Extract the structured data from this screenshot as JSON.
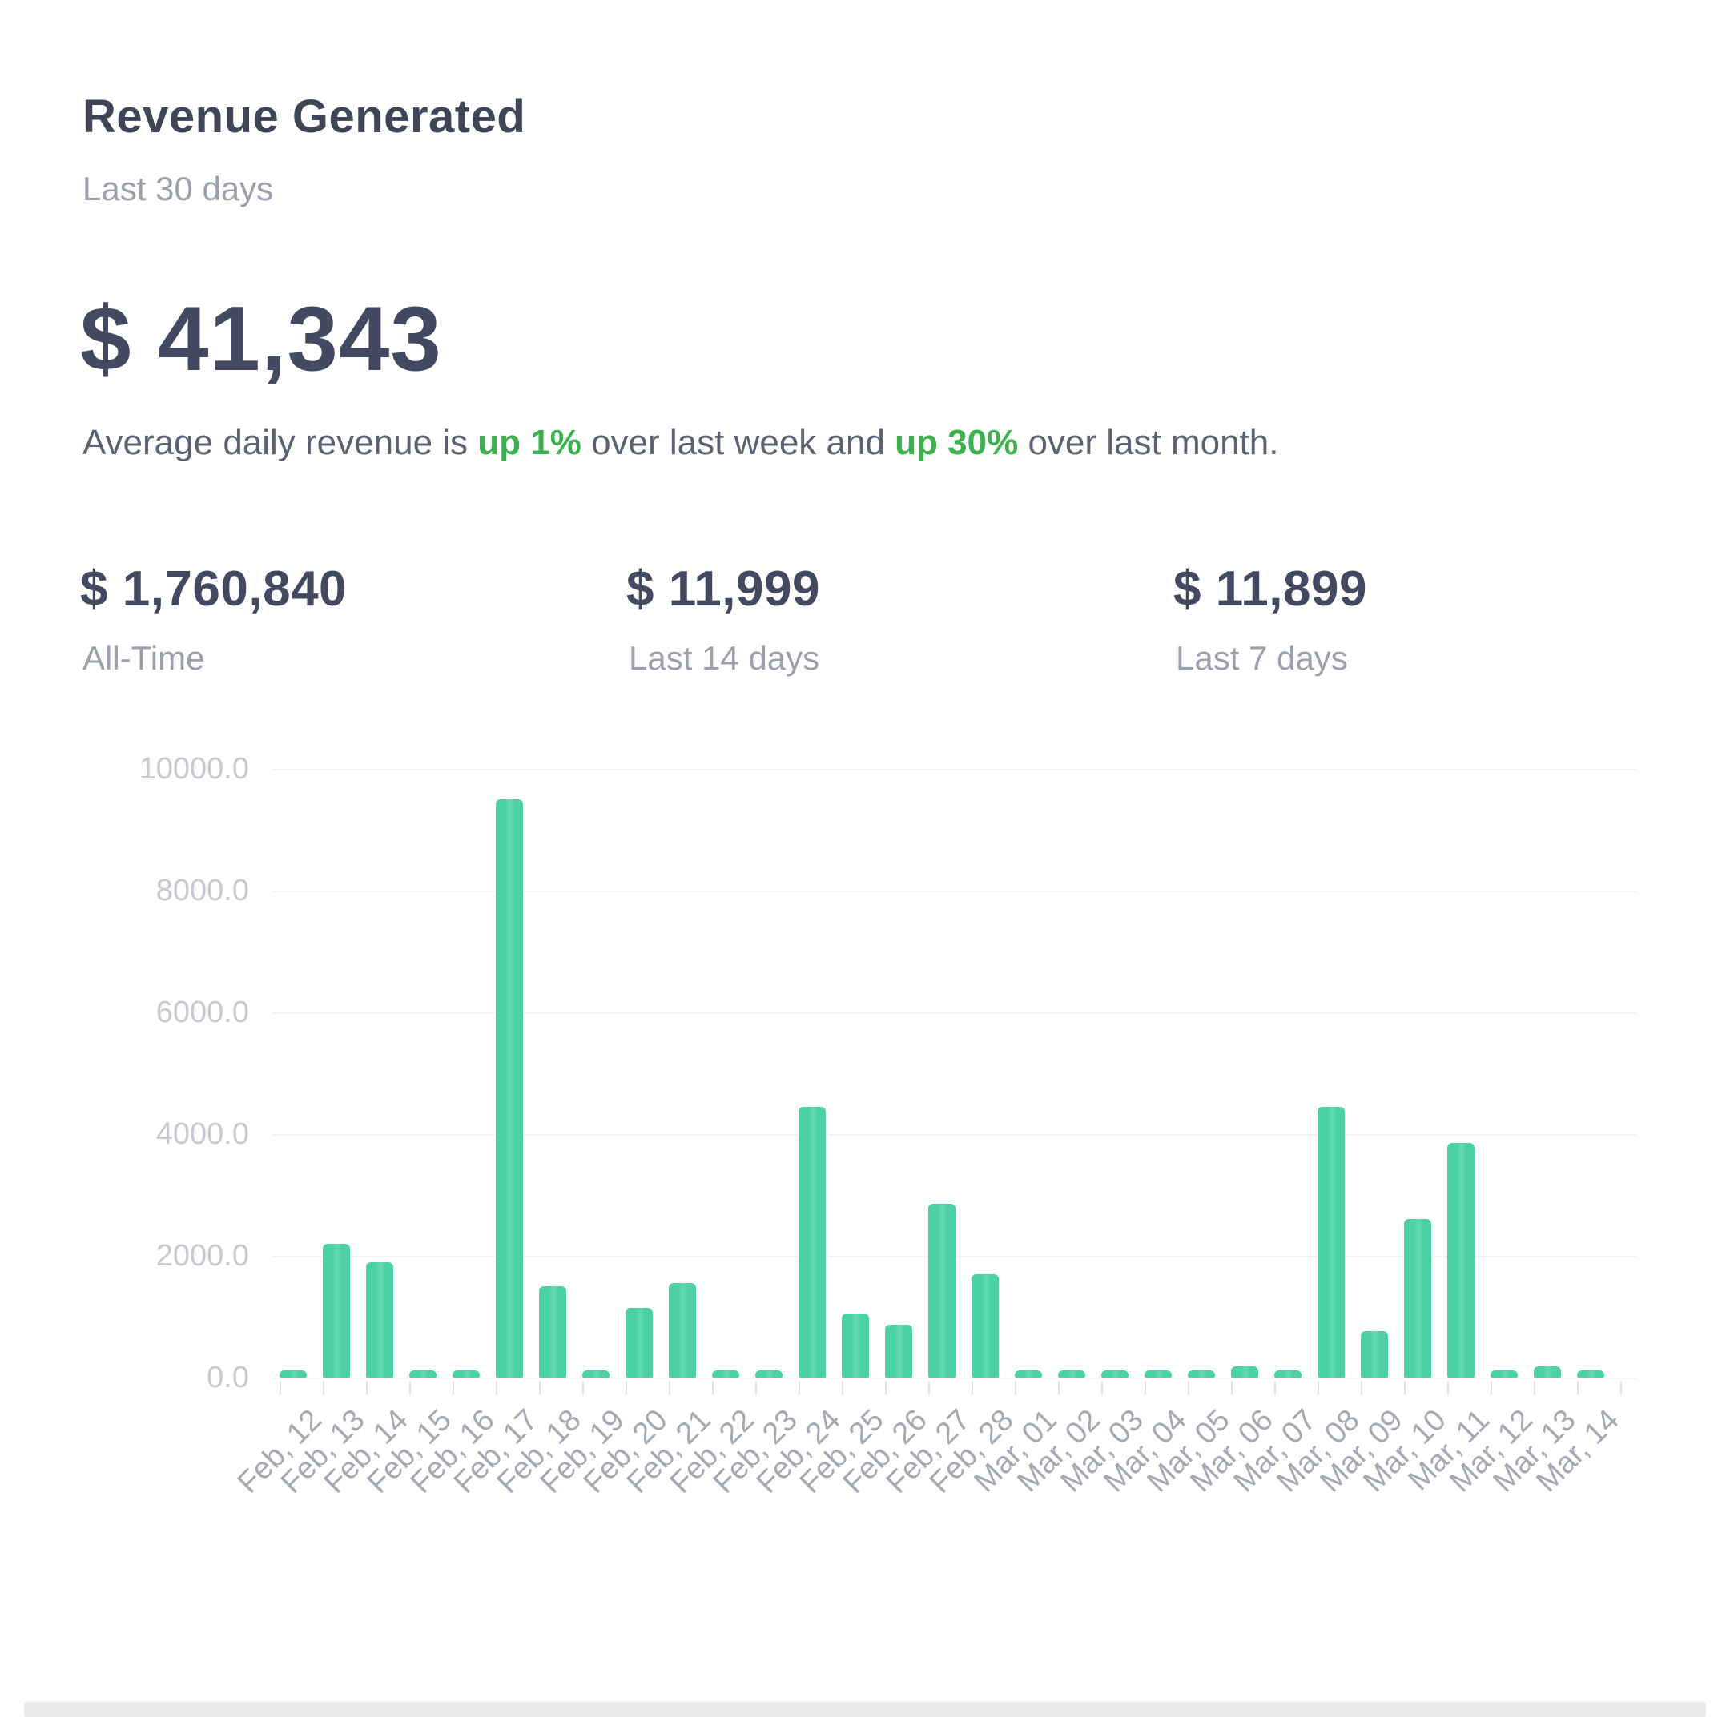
{
  "header": {
    "title": "Revenue Generated",
    "subtitle": "Last 30 days"
  },
  "summary": {
    "total": "$ 41,343",
    "sentence": {
      "prefix": "Average daily revenue is ",
      "week_change": "up 1%",
      "middle": " over last week and ",
      "month_change": "up 30%",
      "suffix": " over last month."
    }
  },
  "stats": [
    {
      "value": "$ 1,760,840",
      "label": "All-Time"
    },
    {
      "value": "$ 11,999",
      "label": "Last 14 days"
    },
    {
      "value": "$ 11,899",
      "label": "Last 7 days"
    }
  ],
  "colors": {
    "accent_green": "#3cb14e",
    "bar": "#4bd1a2",
    "dark_text": "#434960",
    "muted_text": "#9ca0ac",
    "body_text": "#5c6172",
    "grid": "#f6f3f5",
    "axis_tick": "#e3e5e9",
    "y_label": "#c6c9d1",
    "x_label": "#a5a9b4",
    "divider": "#e9e9ec"
  },
  "chart_data": {
    "type": "bar",
    "categories": [
      "Feb, 12",
      "Feb, 13",
      "Feb, 14",
      "Feb, 15",
      "Feb, 16",
      "Feb, 17",
      "Feb, 18",
      "Feb, 19",
      "Feb, 20",
      "Feb, 21",
      "Feb, 22",
      "Feb, 23",
      "Feb, 24",
      "Feb, 25",
      "Feb, 26",
      "Feb, 27",
      "Feb, 28",
      "Mar, 01",
      "Mar, 02",
      "Mar, 03",
      "Mar, 04",
      "Mar, 05",
      "Mar, 06",
      "Mar, 07",
      "Mar, 08",
      "Mar, 09",
      "Mar, 10",
      "Mar, 11",
      "Mar, 12",
      "Mar, 13",
      "Mar, 14"
    ],
    "values": [
      100,
      2200,
      1900,
      100,
      100,
      9500,
      1500,
      100,
      1150,
      1550,
      100,
      100,
      4450,
      1050,
      870,
      2850,
      1700,
      100,
      100,
      100,
      100,
      100,
      180,
      100,
      4450,
      760,
      2600,
      3850,
      100,
      180,
      100
    ],
    "title": "",
    "xlabel": "",
    "ylabel": "",
    "ylim": [
      0,
      10000
    ],
    "y_tick_labels": [
      "10000.0",
      "8000.0",
      "6000.0",
      "4000.0",
      "2000.0",
      "0.0"
    ],
    "grid": "horizontal",
    "legend": "none",
    "bar_color": "#4bd1a2"
  }
}
